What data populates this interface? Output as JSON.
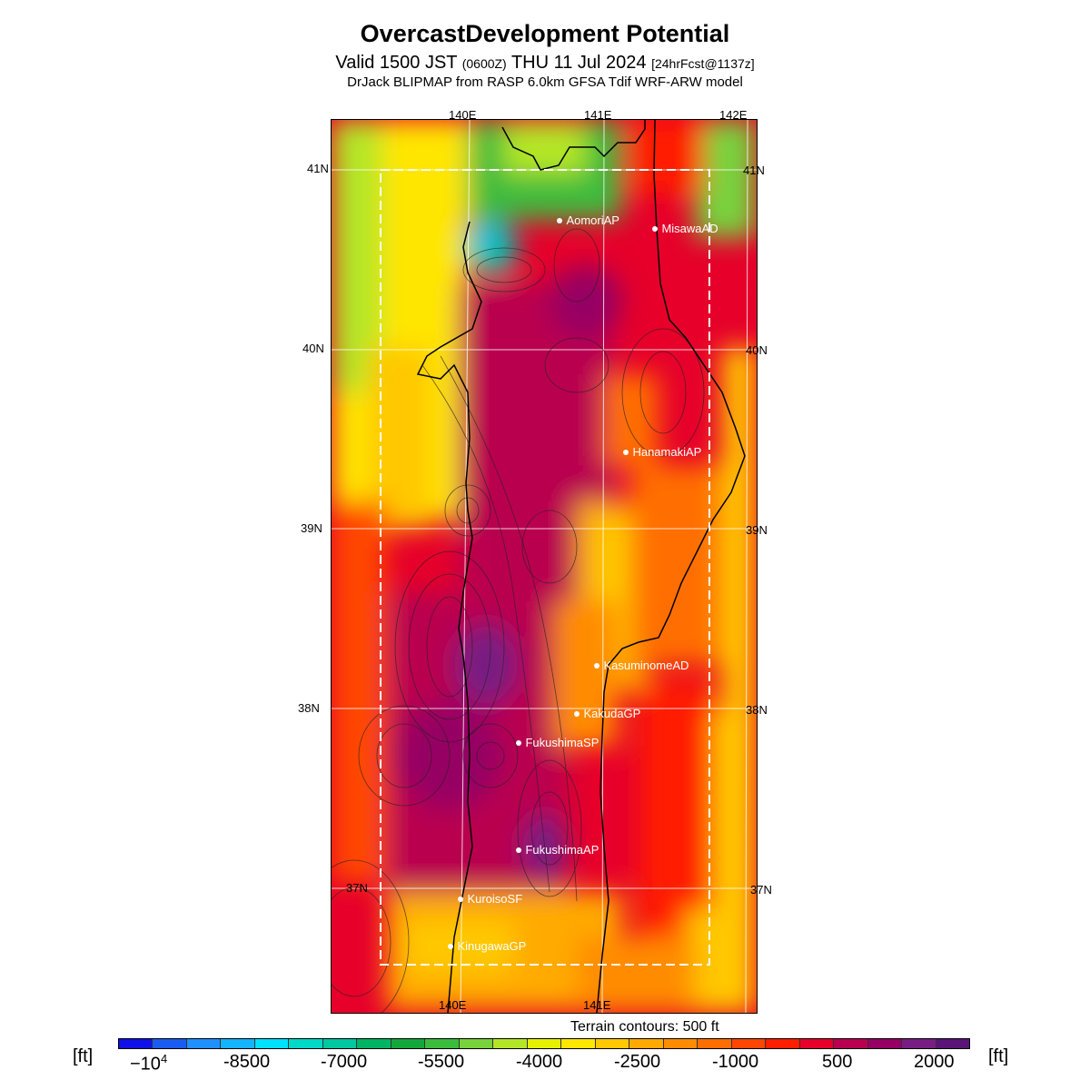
{
  "title": "OvercastDevelopment Potential",
  "subtitle": {
    "valid_prefix": "Valid 1500 JST",
    "utc": "(0600Z)",
    "date": "THU 11 Jul 2024",
    "forecast": "[24hrFcst@1137z]"
  },
  "model_line": "DrJack BLIPMAP from RASP 6.0km GFSA Tdif WRF-ARW model",
  "terrain_note": "Terrain contours: 500 ft",
  "unit_label": "[ft]",
  "map": {
    "lon_labels_top": [
      "140E",
      "141E",
      "142E"
    ],
    "lon_labels_bottom": [
      "140E",
      "141E"
    ],
    "lat_labels": [
      "41N",
      "40N",
      "39N",
      "38N",
      "37N"
    ],
    "sites": [
      {
        "name": "AomoriAP"
      },
      {
        "name": "MisawaAD"
      },
      {
        "name": "HanamakiAP"
      },
      {
        "name": "KasuminomeAD"
      },
      {
        "name": "KakudaGP"
      },
      {
        "name": "FukushimaSP"
      },
      {
        "name": "FukushimaAP"
      },
      {
        "name": "KuroisoSF"
      },
      {
        "name": "KinugawaGP"
      }
    ]
  },
  "colorbar": {
    "labels": [
      "-10^4",
      "-8500",
      "-7000",
      "-5500",
      "-4000",
      "-2500",
      "-1000",
      "500",
      "2000"
    ],
    "colors": [
      "#1010e8",
      "#1a5cf0",
      "#1e90ff",
      "#14b4ff",
      "#00e0ff",
      "#00d8c8",
      "#00c8a0",
      "#00b464",
      "#14a83c",
      "#3cbc3c",
      "#78d23c",
      "#b4e628",
      "#e6f000",
      "#ffe600",
      "#ffc800",
      "#ffaa00",
      "#ff8c00",
      "#ff6e00",
      "#ff4600",
      "#ff1e00",
      "#e6002a",
      "#b90050",
      "#960064",
      "#781e82",
      "#5a1478"
    ]
  }
}
